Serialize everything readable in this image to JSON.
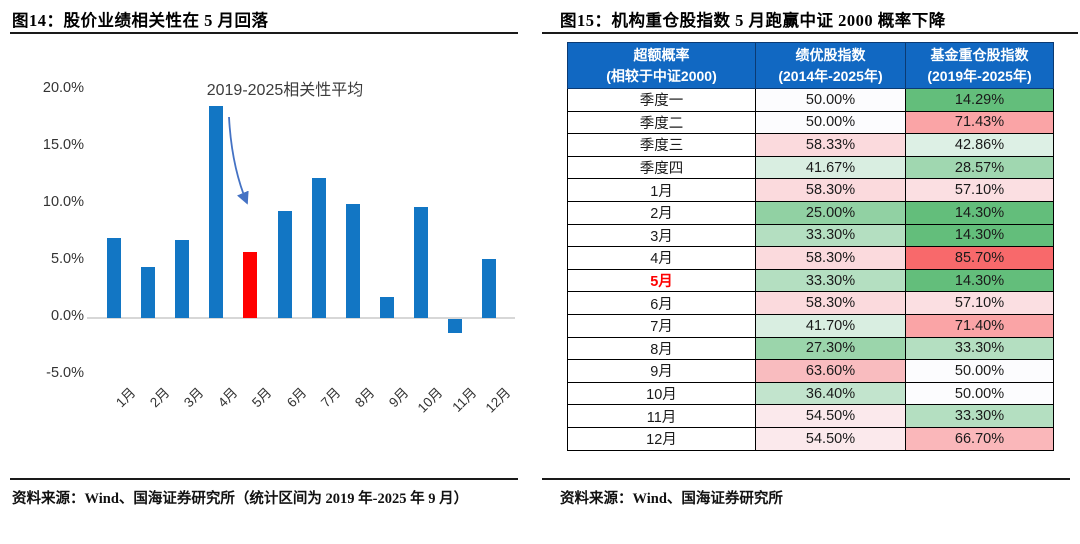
{
  "figure14": {
    "title": "图14：股价业绩相关性在 5 月回落",
    "source": "资料来源：Wind、国海证券研究所（统计区间为 2019 年-2025 年 9 月）"
  },
  "figure15": {
    "title": "图15：机构重仓股指数 5 月跑赢中证 2000 概率下降",
    "source": "资料来源：Wind、国海证券研究所"
  },
  "chart_data": [
    {
      "type": "bar",
      "annotation": "2019-2025相关性平均",
      "categories": [
        "1月",
        "2月",
        "3月",
        "4月",
        "5月",
        "6月",
        "7月",
        "8月",
        "9月",
        "10月",
        "11月",
        "12月"
      ],
      "values": [
        7.0,
        4.5,
        6.8,
        18.6,
        5.8,
        9.4,
        12.3,
        10.0,
        1.8,
        9.7,
        -1.2,
        5.2
      ],
      "unit": "%",
      "highlight_index": 4,
      "bar_color": "#1276C4",
      "highlight_color": "#FF0000",
      "arrow_color": "#4472C4",
      "y_ticks": [
        "20.0%",
        "15.0%",
        "10.0%",
        "5.0%",
        "0.0%",
        "-5.0%"
      ],
      "ylim": [
        -5,
        20
      ],
      "grid": false,
      "legend": "none"
    },
    {
      "type": "table",
      "header_bg": "#1168C2",
      "header_text_color": "#FFFFFF",
      "columns": [
        {
          "title": "超额概率",
          "subtitle": "(相较于中证2000)"
        },
        {
          "title": "绩优股指数",
          "subtitle": "(2014年-2025年)"
        },
        {
          "title": "基金重仓股指数",
          "subtitle": "(2019年-2025年)"
        }
      ],
      "rows": [
        {
          "label": "季度一",
          "highlight": false,
          "values": [
            "50.00%",
            "14.29%"
          ],
          "bg": [
            "#FCFCFE",
            "#63BE7B"
          ]
        },
        {
          "label": "季度二",
          "highlight": false,
          "values": [
            "50.00%",
            "71.43%"
          ],
          "bg": [
            "#FCFCFE",
            "#FAA4A6"
          ]
        },
        {
          "label": "季度三",
          "highlight": false,
          "values": [
            "58.33%",
            "42.86%"
          ],
          "bg": [
            "#FBDADD",
            "#DDF0E5"
          ]
        },
        {
          "label": "季度四",
          "highlight": false,
          "values": [
            "41.67%",
            "28.57%"
          ],
          "bg": [
            "#D9EEE1",
            "#A0D7B0"
          ]
        },
        {
          "label": "1月",
          "highlight": false,
          "values": [
            "58.30%",
            "57.10%"
          ],
          "bg": [
            "#FBDADD",
            "#FBDFE2"
          ]
        },
        {
          "label": "2月",
          "highlight": false,
          "values": [
            "25.00%",
            "14.30%"
          ],
          "bg": [
            "#91D1A3",
            "#63BE7B"
          ]
        },
        {
          "label": "3月",
          "highlight": false,
          "values": [
            "33.30%",
            "14.30%"
          ],
          "bg": [
            "#B4DFC1",
            "#63BE7B"
          ]
        },
        {
          "label": "4月",
          "highlight": false,
          "values": [
            "58.30%",
            "85.70%"
          ],
          "bg": [
            "#FBDADD",
            "#F8696B"
          ]
        },
        {
          "label": "5月",
          "highlight": true,
          "values": [
            "33.30%",
            "14.30%"
          ],
          "bg": [
            "#B4DFC1",
            "#63BE7B"
          ]
        },
        {
          "label": "6月",
          "highlight": false,
          "values": [
            "58.30%",
            "57.10%"
          ],
          "bg": [
            "#FBDADD",
            "#FBDFE2"
          ]
        },
        {
          "label": "7月",
          "highlight": false,
          "values": [
            "41.70%",
            "71.40%"
          ],
          "bg": [
            "#D9EEE1",
            "#FAA4A6"
          ]
        },
        {
          "label": "8月",
          "highlight": false,
          "values": [
            "27.30%",
            "33.30%"
          ],
          "bg": [
            "#9BD5AB",
            "#B4DFC1"
          ]
        },
        {
          "label": "9月",
          "highlight": false,
          "values": [
            "63.60%",
            "50.00%"
          ],
          "bg": [
            "#F9BCBF",
            "#FCFCFE"
          ]
        },
        {
          "label": "10月",
          "highlight": false,
          "values": [
            "36.40%",
            "50.00%"
          ],
          "bg": [
            "#C2E4CD",
            "#FCFCFE"
          ]
        },
        {
          "label": "11月",
          "highlight": false,
          "values": [
            "54.50%",
            "33.30%"
          ],
          "bg": [
            "#FBE9EC",
            "#B4DFC1"
          ]
        },
        {
          "label": "12月",
          "highlight": false,
          "values": [
            "54.50%",
            "66.70%"
          ],
          "bg": [
            "#FBE9EC",
            "#FAB7BA"
          ]
        }
      ]
    }
  ]
}
